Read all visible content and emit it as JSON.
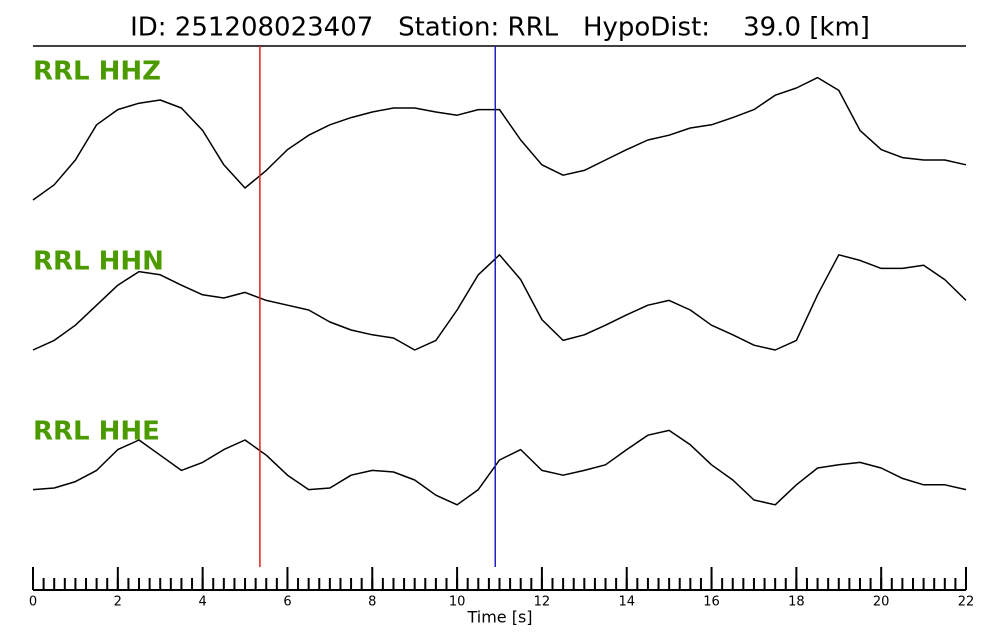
{
  "chart_data": {
    "type": "line",
    "title": "ID: 251208023407   Station: RRL   HypoDist:    39.0 [km]",
    "xlabel": "Time [s]",
    "xlim": [
      0,
      22
    ],
    "xticks": [
      0,
      2,
      4,
      6,
      8,
      10,
      12,
      14,
      16,
      18,
      20,
      22
    ],
    "xminorticks": [
      0,
      0.25,
      0.5,
      0.75,
      1,
      1.25,
      1.5,
      1.75,
      2,
      2.25,
      2.5,
      2.75,
      3,
      3.25,
      3.5,
      3.75,
      4,
      4.25,
      4.5,
      4.75,
      5,
      5.25,
      5.5,
      5.75,
      6,
      6.25,
      6.5,
      6.75,
      7,
      7.25,
      7.5,
      7.75,
      8,
      8.25,
      8.5,
      8.75,
      9,
      9.25,
      9.5,
      9.75,
      10,
      10.25,
      10.5,
      10.75,
      11,
      11.25,
      11.5,
      11.75,
      12,
      12.25,
      12.5,
      12.75,
      13,
      13.25,
      13.5,
      13.75,
      14,
      14.25,
      14.5,
      14.75,
      15,
      15.25,
      15.5,
      15.75,
      16,
      16.25,
      16.5,
      16.75,
      17,
      17.25,
      17.5,
      17.75,
      18,
      18.25,
      18.5,
      18.75,
      19,
      19.25,
      19.5,
      19.75,
      20,
      20.25,
      20.5,
      20.75,
      21,
      21.25,
      21.5,
      21.75,
      22
    ],
    "ylim": [
      -1,
      1
    ],
    "label_color": "#4a9a00",
    "vlines": [
      {
        "x": 5.35,
        "color": "#e02020"
      },
      {
        "x": 10.9,
        "color": "#2020c0"
      }
    ],
    "x": [
      0,
      0.5,
      1,
      1.5,
      2,
      2.5,
      3,
      3.5,
      4,
      4.5,
      5,
      5.5,
      6,
      6.5,
      7,
      7.5,
      8,
      8.5,
      9,
      9.5,
      10,
      10.5,
      11,
      11.5,
      12,
      12.5,
      13,
      13.5,
      14,
      14.5,
      15,
      15.5,
      16,
      16.5,
      17,
      17.5,
      18,
      18.5,
      19,
      19.5,
      20,
      20.5,
      21,
      21.5,
      22
    ],
    "series": [
      {
        "name": "RRL HHZ",
        "color": "#000000",
        "values": [
          -0.75,
          -0.56,
          -0.25,
          0.19,
          0.38,
          0.46,
          0.5,
          0.4,
          0.12,
          -0.31,
          -0.6,
          -0.38,
          -0.12,
          0.06,
          0.19,
          0.28,
          0.35,
          0.4,
          0.4,
          0.35,
          0.31,
          0.38,
          0.38,
          0,
          -0.31,
          -0.44,
          -0.38,
          -0.25,
          -0.12,
          0,
          0.06,
          0.15,
          0.19,
          0.28,
          0.38,
          0.56,
          0.65,
          0.78,
          0.62,
          0.12,
          -0.12,
          -0.22,
          -0.25,
          -0.25,
          -0.31
        ]
      },
      {
        "name": "RRL HHN",
        "color": "#000000",
        "values": [
          -0.5,
          -0.38,
          -0.19,
          0.06,
          0.31,
          0.48,
          0.44,
          0.31,
          0.19,
          0.15,
          0.22,
          0.12,
          0.06,
          0,
          -0.15,
          -0.25,
          -0.31,
          -0.35,
          -0.5,
          -0.38,
          0,
          0.44,
          0.69,
          0.38,
          -0.12,
          -0.38,
          -0.31,
          -0.19,
          -0.06,
          0.06,
          0.12,
          0,
          -0.19,
          -0.31,
          -0.44,
          -0.5,
          -0.38,
          0.19,
          0.69,
          0.62,
          0.52,
          0.52,
          0.56,
          0.38,
          0.12
        ]
      },
      {
        "name": "RRL HHE",
        "color": "#000000",
        "values": [
          -0.12,
          -0.1,
          -0.02,
          0.12,
          0.38,
          0.5,
          0.31,
          0.12,
          0.22,
          0.38,
          0.5,
          0.31,
          0.06,
          -0.12,
          -0.1,
          0.06,
          0.12,
          0.1,
          0,
          -0.19,
          -0.31,
          -0.12,
          0.25,
          0.38,
          0.12,
          0.06,
          0.12,
          0.19,
          0.38,
          0.56,
          0.62,
          0.44,
          0.19,
          0,
          -0.25,
          -0.31,
          -0.06,
          0.15,
          0.19,
          0.22,
          0.15,
          0.02,
          -0.06,
          -0.06,
          -0.12
        ]
      }
    ]
  }
}
